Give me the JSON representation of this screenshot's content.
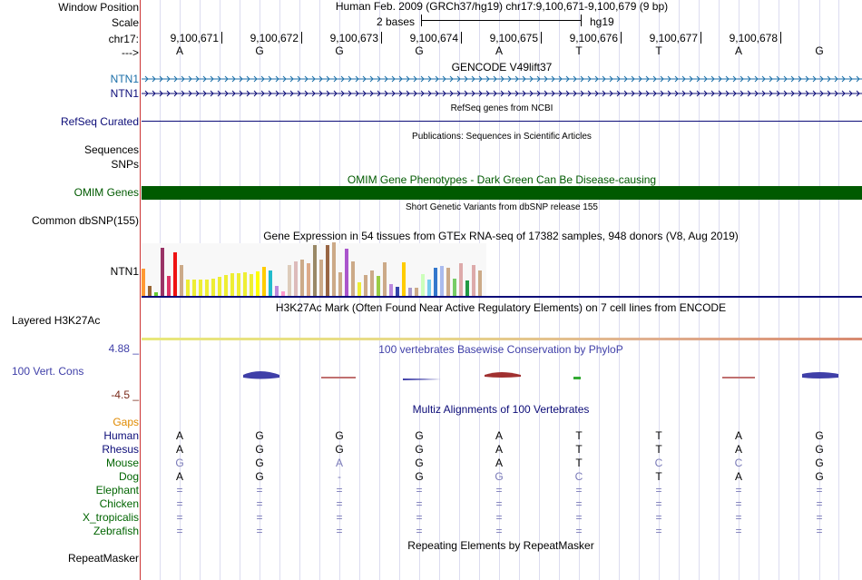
{
  "header": {
    "window_position_label": "Window Position",
    "scale_label": "Scale",
    "chr_label": "chr17:",
    "strand_label": "--->",
    "assembly_title": "Human Feb. 2009 (GRCh37/hg19)   chr17:9,100,671-9,100,679 (9 bp)",
    "scale_text": "2 bases",
    "db": "hg19",
    "positions": [
      "9,100,671",
      "9,100,672",
      "9,100,673",
      "9,100,674",
      "9,100,675",
      "9,100,676",
      "9,100,677",
      "9,100,678"
    ],
    "bases": [
      "A",
      "G",
      "G",
      "G",
      "A",
      "T",
      "T",
      "A",
      "G"
    ]
  },
  "tracks": {
    "gencode": {
      "title": "GENCODE V49lift37",
      "labels": [
        "NTN1",
        "NTN1"
      ]
    },
    "refseq": {
      "title": "RefSeq genes from NCBI",
      "label": "RefSeq Curated"
    },
    "publications": {
      "title": "Publications: Sequences in Scientific Articles",
      "labels": [
        "Sequences",
        "SNPs"
      ]
    },
    "omim": {
      "title": "OMIM Gene Phenotypes - Dark Green Can Be Disease-causing",
      "label": "OMIM Genes"
    },
    "dbsnp": {
      "title": "Short Genetic Variants from dbSNP release 155",
      "label": "Common dbSNP(155)"
    },
    "gtex": {
      "title": "Gene Expression in 54 tissues from GTEx RNA-seq of 17382 samples, 948 donors (V8, Aug 2019)",
      "label": "NTN1"
    },
    "h3k27ac": {
      "title": "H3K27Ac Mark (Often Found Near Active Regulatory Elements) on 7 cell lines from ENCODE",
      "label": "Layered H3K27Ac"
    },
    "cons": {
      "title": "100 vertebrates Basewise Conservation by PhyloP",
      "label": "100 Vert. Cons",
      "max": "4.88 _",
      "min": "-4.5 _"
    },
    "multiz": {
      "title": "Multiz Alignments of 100 Vertebrates",
      "gaps_label": "Gaps"
    },
    "repeatmasker": {
      "title": "Repeating Elements by RepeatMasker",
      "label": "RepeatMasker"
    }
  },
  "alignment": {
    "species": [
      "Human",
      "Rhesus",
      "Mouse",
      "Dog",
      "Elephant",
      "Chicken",
      "X_tropicalis",
      "Zebrafish"
    ],
    "rows": [
      [
        "A",
        "G",
        "G",
        "G",
        "A",
        "T",
        "T",
        "A",
        "G"
      ],
      [
        "A",
        "G",
        "G",
        "G",
        "A",
        "T",
        "T",
        "A",
        "G"
      ],
      [
        "G",
        "G",
        "A",
        "G",
        "A",
        "T",
        "C",
        "C",
        "G"
      ],
      [
        "A",
        "G",
        "-",
        "G",
        "G",
        "C",
        "T",
        "A",
        "G"
      ],
      [
        "=",
        "=",
        "=",
        "=",
        "=",
        "=",
        "=",
        "=",
        "="
      ],
      [
        "=",
        "=",
        "=",
        "=",
        "=",
        "=",
        "=",
        "=",
        "="
      ],
      [
        "=",
        "=",
        "=",
        "=",
        "=",
        "=",
        "=",
        "=",
        "="
      ],
      [
        "=",
        "=",
        "=",
        "=",
        "=",
        "=",
        "=",
        "=",
        "="
      ]
    ]
  },
  "chart_data": {
    "type": "bar",
    "title": "Gene Expression in 54 tissues from GTEx RNA-seq of 17382 samples, 948 donors (V8, Aug 2019)",
    "values": [
      30,
      11,
      4,
      53,
      22,
      48,
      34,
      18,
      18,
      18,
      18,
      19,
      21,
      23,
      25,
      25,
      26,
      24,
      27,
      32,
      28,
      11,
      5,
      34,
      38,
      40,
      36,
      56,
      40,
      56,
      59,
      26,
      52,
      38,
      15,
      23,
      28,
      22,
      37,
      13,
      10,
      37,
      9,
      9,
      24,
      18,
      31,
      33,
      31,
      19,
      36,
      17,
      34,
      28
    ],
    "colors": [
      "#ff9933",
      "#996633",
      "#66cc33",
      "#993366",
      "#dd3366",
      "#ee1111",
      "#ccaa88",
      "#eeee33",
      "#eeee33",
      "#eeee33",
      "#eeee33",
      "#eeee33",
      "#eeee33",
      "#eeee33",
      "#eeee33",
      "#eeee33",
      "#eeee33",
      "#eeee33",
      "#ffff00",
      "#ffcc00",
      "#22bbcc",
      "#bb88dd",
      "#ff99cc",
      "#ddccbb",
      "#ddbbbb",
      "#ccaa88",
      "#ddaa88",
      "#998866",
      "#ccaa88",
      "#996644",
      "#ccaa88",
      "#ccaa88",
      "#aa55cc",
      "#ccaa88",
      "#eeee33",
      "#ccaa88",
      "#ccaa88",
      "#99cc44",
      "#ccaa88",
      "#bb88dd",
      "#3344aa",
      "#ffcc00",
      "#aa99cc",
      "#ccaa88",
      "#ccffbb",
      "#77ccee",
      "#3377cc",
      "#aabbee",
      "#ccaa88",
      "#77cc66",
      "#ddaaaa",
      "#229944",
      "#ddaaaa",
      "#ccaa88"
    ]
  },
  "colors": {
    "gencode_light": "#1a6ea8",
    "gencode_dark": "#0c0c78",
    "refseq": "#0c0c78",
    "omim": "#005a00",
    "cons_blue": "#3f3fa8",
    "cons_red": "#7a2a1a",
    "gaps": "#e08a00",
    "multiz_green": "#006400"
  }
}
